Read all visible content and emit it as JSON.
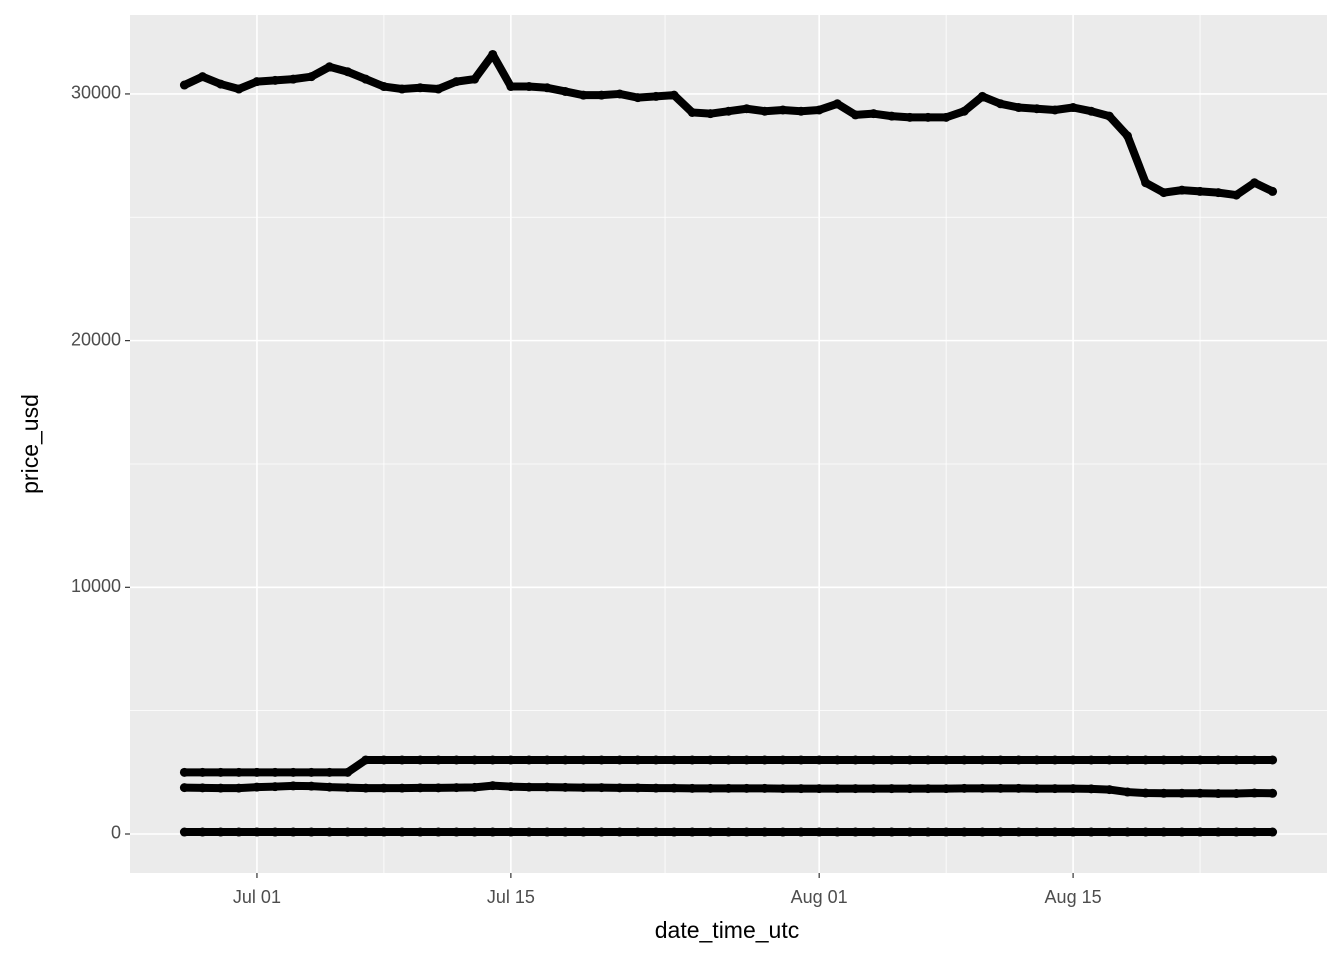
{
  "chart_data": {
    "type": "scatter",
    "x_label": "date_time_utc",
    "y_label": "price_usd",
    "x": [
      "Jun 27",
      "Jun 28",
      "Jun 29",
      "Jun 30",
      "Jul 01",
      "Jul 02",
      "Jul 03",
      "Jul 04",
      "Jul 05",
      "Jul 06",
      "Jul 07",
      "Jul 08",
      "Jul 09",
      "Jul 10",
      "Jul 11",
      "Jul 12",
      "Jul 13",
      "Jul 14",
      "Jul 15",
      "Jul 16",
      "Jul 17",
      "Jul 18",
      "Jul 19",
      "Jul 20",
      "Jul 21",
      "Jul 22",
      "Jul 23",
      "Jul 24",
      "Jul 25",
      "Jul 26",
      "Jul 27",
      "Jul 28",
      "Jul 29",
      "Jul 30",
      "Jul 31",
      "Aug 01",
      "Aug 02",
      "Aug 03",
      "Aug 04",
      "Aug 05",
      "Aug 06",
      "Aug 07",
      "Aug 08",
      "Aug 09",
      "Aug 10",
      "Aug 11",
      "Aug 12",
      "Aug 13",
      "Aug 14",
      "Aug 15",
      "Aug 16",
      "Aug 17",
      "Aug 18",
      "Aug 19",
      "Aug 20",
      "Aug 21",
      "Aug 22",
      "Aug 23",
      "Aug 24",
      "Aug 25",
      "Aug 26"
    ],
    "series": [
      {
        "color": "#000000",
        "values": [
          30360,
          30700,
          30400,
          30200,
          30500,
          30550,
          30600,
          30700,
          31100,
          30900,
          30600,
          30300,
          30200,
          30250,
          30200,
          30500,
          30600,
          31600,
          30300,
          30300,
          30250,
          30100,
          29950,
          29950,
          30000,
          29850,
          29900,
          29950,
          29250,
          29200,
          29300,
          29400,
          29300,
          29350,
          29300,
          29350,
          29600,
          29150,
          29200,
          29100,
          29050,
          29050,
          29050,
          29300,
          29900,
          29600,
          29450,
          29400,
          29350,
          29450,
          29300,
          29100,
          28300,
          26400,
          26000,
          26100,
          26050,
          26000,
          25900,
          26400,
          26050
        ]
      },
      {
        "color": "#000000",
        "values": [
          2500,
          2500,
          2500,
          2500,
          2500,
          2500,
          2500,
          2500,
          2500,
          2500,
          3000,
          3000,
          3000,
          3000,
          3000,
          3000,
          3000,
          3000,
          3000,
          3000,
          3000,
          3000,
          3000,
          3000,
          3000,
          3000,
          3000,
          3000,
          3000,
          3000,
          3000,
          3000,
          3000,
          3000,
          3000,
          3000,
          3000,
          3000,
          3000,
          3000,
          3000,
          3000,
          3000,
          3000,
          3000,
          3000,
          3000,
          3000,
          3000,
          3000,
          3000,
          3000,
          3000,
          3000,
          3000,
          3000,
          3000,
          3000,
          3000,
          3000,
          3000
        ]
      },
      {
        "color": "#000000",
        "values": [
          1880,
          1870,
          1860,
          1860,
          1900,
          1920,
          1950,
          1940,
          1900,
          1880,
          1860,
          1860,
          1860,
          1870,
          1870,
          1880,
          1890,
          1960,
          1920,
          1900,
          1900,
          1890,
          1880,
          1880,
          1870,
          1870,
          1860,
          1860,
          1850,
          1850,
          1850,
          1850,
          1850,
          1840,
          1840,
          1840,
          1840,
          1840,
          1840,
          1840,
          1840,
          1840,
          1840,
          1850,
          1850,
          1850,
          1850,
          1840,
          1840,
          1840,
          1830,
          1800,
          1700,
          1660,
          1650,
          1650,
          1650,
          1640,
          1640,
          1660,
          1650
        ]
      },
      {
        "color": "#000000",
        "values": [
          80,
          80,
          80,
          80,
          80,
          80,
          80,
          80,
          80,
          80,
          80,
          80,
          80,
          80,
          80,
          80,
          80,
          80,
          80,
          80,
          80,
          80,
          80,
          80,
          80,
          80,
          80,
          80,
          80,
          80,
          80,
          80,
          80,
          80,
          80,
          80,
          80,
          80,
          80,
          80,
          80,
          80,
          80,
          80,
          80,
          80,
          80,
          80,
          80,
          80,
          80,
          80,
          80,
          80,
          80,
          80,
          80,
          80,
          80,
          80,
          80
        ]
      }
    ],
    "xlim": [
      "Jun 24",
      "Aug 29"
    ],
    "xticks": [
      "Jul 01",
      "Jul 15",
      "Aug 01",
      "Aug 15"
    ],
    "ylim": [
      -1581,
      33200
    ],
    "yticks": [
      0,
      10000,
      20000,
      30000
    ],
    "grid": true
  }
}
